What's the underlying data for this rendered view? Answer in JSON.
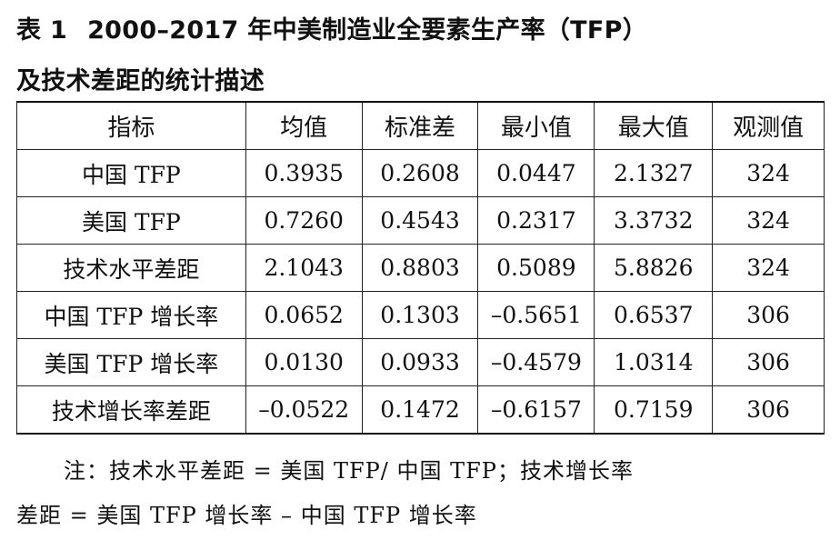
{
  "caption": {
    "label": "表 1",
    "line1": "2000–2017 年中美制造业全要素生产率（TFP）",
    "line2": "及技术差距的统计描述"
  },
  "table": {
    "headers": [
      "指标",
      "均值",
      "标准差",
      "最小值",
      "最大值",
      "观测值"
    ],
    "rows": [
      [
        "中国 TFP",
        "0.3935",
        "0.2608",
        "0.0447",
        "2.1327",
        "324"
      ],
      [
        "美国 TFP",
        "0.7260",
        "0.4543",
        "0.2317",
        "3.3732",
        "324"
      ],
      [
        "技术水平差距",
        "2.1043",
        "0.8803",
        "0.5089",
        "5.8826",
        "324"
      ],
      [
        "中国 TFP 增长率",
        "0.0652",
        "0.1303",
        "–0.5651",
        "0.6537",
        "306"
      ],
      [
        "美国 TFP 增长率",
        "0.0130",
        "0.0933",
        "–0.4579",
        "1.0314",
        "306"
      ],
      [
        "技术增长率差距",
        "–0.0522",
        "0.1472",
        "–0.6157",
        "0.7159",
        "306"
      ]
    ]
  },
  "note": {
    "line1": "注：技术水平差距 = 美国 TFP/ 中国 TFP；技术增长率",
    "line2": "差距 = 美国 TFP 增长率 – 中国 TFP 增长率"
  }
}
